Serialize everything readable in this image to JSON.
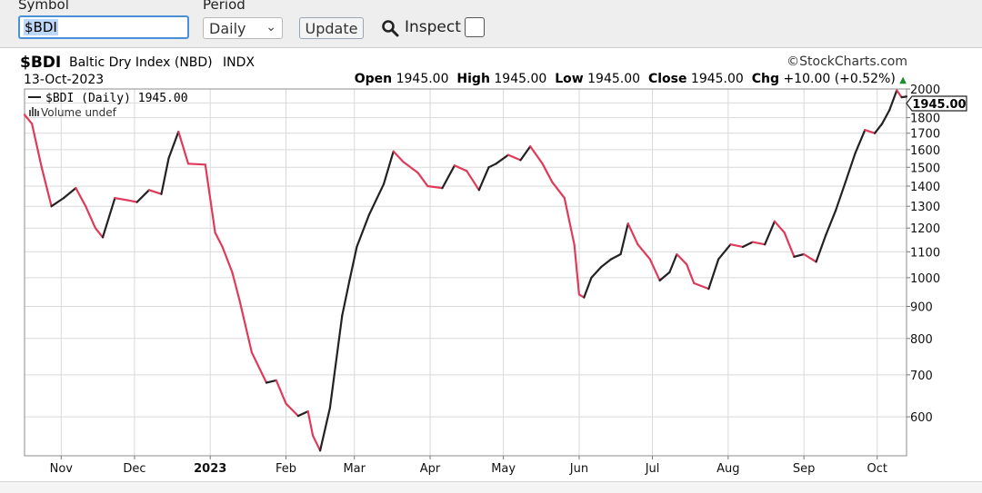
{
  "toolbar": {
    "symbol_label": "Symbol",
    "symbol_value": "$BDI",
    "period_label": "Period",
    "period_value": "Daily",
    "update_label": "Update",
    "inspect_label": "Inspect",
    "inspect_checked": false
  },
  "header": {
    "symbol": "$BDI",
    "name": "Baltic Dry Index (NBD)",
    "exchange": "INDX",
    "date": "13-Oct-2023",
    "watermark": "©StockCharts.com",
    "open_label": "Open",
    "open": "1945.00",
    "high_label": "High",
    "high": "1945.00",
    "low_label": "Low",
    "low": "1945.00",
    "close_label": "Close",
    "close": "1945.00",
    "chg_label": "Chg",
    "chg": "+10.00 (+0.52%)",
    "chg_arrow": "▲"
  },
  "colors": {
    "up": "#222222",
    "down": "#e03a5a",
    "accent": "#4a90d9",
    "grid": "#d9d9d9",
    "chg_up": "#1a8f2c"
  },
  "chart_data": {
    "type": "line",
    "legend": [
      "$BDI (Daily) 1945.00",
      "Volume undef"
    ],
    "last_value_label": "1945.00",
    "y_scale": "log",
    "ylim": [
      520,
      2000
    ],
    "y_ticks": [
      600,
      700,
      800,
      900,
      1000,
      1100,
      1200,
      1300,
      1400,
      1500,
      1600,
      1700,
      1800,
      1900,
      2000
    ],
    "y_tick_labels": [
      "600",
      "700",
      "800",
      "900",
      "1000",
      "1100",
      "1200",
      "1300",
      "1400",
      "1500",
      "1600",
      "1700",
      "1800",
      "",
      "2000"
    ],
    "x_range": [
      "2022-10-17",
      "2023-10-13"
    ],
    "x_ticks": [
      {
        "date": "2022-11-01",
        "label": "Nov"
      },
      {
        "date": "2022-12-01",
        "label": "Dec"
      },
      {
        "date": "2023-01-01",
        "label": "2023",
        "bold": true
      },
      {
        "date": "2023-02-01",
        "label": "Feb"
      },
      {
        "date": "2023-03-01",
        "label": "Mar"
      },
      {
        "date": "2023-04-01",
        "label": "Apr"
      },
      {
        "date": "2023-05-01",
        "label": "May"
      },
      {
        "date": "2023-06-01",
        "label": "Jun"
      },
      {
        "date": "2023-07-01",
        "label": "Jul"
      },
      {
        "date": "2023-08-01",
        "label": "Aug"
      },
      {
        "date": "2023-09-01",
        "label": "Sep"
      },
      {
        "date": "2023-10-01",
        "label": "Oct"
      }
    ],
    "series": [
      {
        "values": [
          [
            "2022-10-17",
            1820
          ],
          [
            "2022-10-20",
            1760
          ],
          [
            "2022-10-24",
            1500
          ],
          [
            "2022-10-28",
            1300
          ],
          [
            "2022-11-02",
            1340
          ],
          [
            "2022-11-07",
            1390
          ],
          [
            "2022-11-11",
            1300
          ],
          [
            "2022-11-15",
            1200
          ],
          [
            "2022-11-18",
            1160
          ],
          [
            "2022-11-23",
            1340
          ],
          [
            "2022-11-28",
            1330
          ],
          [
            "2022-12-02",
            1320
          ],
          [
            "2022-12-07",
            1380
          ],
          [
            "2022-12-12",
            1360
          ],
          [
            "2022-12-15",
            1550
          ],
          [
            "2022-12-19",
            1710
          ],
          [
            "2022-12-23",
            1520
          ],
          [
            "2022-12-30",
            1515
          ],
          [
            "2023-01-03",
            1180
          ],
          [
            "2023-01-06",
            1120
          ],
          [
            "2023-01-10",
            1020
          ],
          [
            "2023-01-13",
            920
          ],
          [
            "2023-01-18",
            760
          ],
          [
            "2023-01-24",
            680
          ],
          [
            "2023-01-28",
            686
          ],
          [
            "2023-02-01",
            630
          ],
          [
            "2023-02-06",
            602
          ],
          [
            "2023-02-10",
            612
          ],
          [
            "2023-02-12",
            560
          ],
          [
            "2023-02-15",
            530
          ],
          [
            "2023-02-19",
            620
          ],
          [
            "2023-02-24",
            870
          ],
          [
            "2023-02-27",
            990
          ],
          [
            "2023-03-02",
            1120
          ],
          [
            "2023-03-07",
            1260
          ],
          [
            "2023-03-13",
            1410
          ],
          [
            "2023-03-17",
            1590
          ],
          [
            "2023-03-21",
            1530
          ],
          [
            "2023-03-27",
            1470
          ],
          [
            "2023-03-31",
            1400
          ],
          [
            "2023-04-06",
            1390
          ],
          [
            "2023-04-11",
            1510
          ],
          [
            "2023-04-16",
            1480
          ],
          [
            "2023-04-21",
            1380
          ],
          [
            "2023-04-25",
            1500
          ],
          [
            "2023-04-28",
            1520
          ],
          [
            "2023-05-03",
            1570
          ],
          [
            "2023-05-08",
            1540
          ],
          [
            "2023-05-12",
            1620
          ],
          [
            "2023-05-17",
            1520
          ],
          [
            "2023-05-21",
            1420
          ],
          [
            "2023-05-26",
            1340
          ],
          [
            "2023-05-30",
            1130
          ],
          [
            "2023-06-01",
            940
          ],
          [
            "2023-06-03",
            930
          ],
          [
            "2023-06-06",
            1000
          ],
          [
            "2023-06-10",
            1040
          ],
          [
            "2023-06-14",
            1070
          ],
          [
            "2023-06-18",
            1090
          ],
          [
            "2023-06-21",
            1220
          ],
          [
            "2023-06-25",
            1130
          ],
          [
            "2023-06-30",
            1070
          ],
          [
            "2023-07-04",
            990
          ],
          [
            "2023-07-08",
            1020
          ],
          [
            "2023-07-11",
            1090
          ],
          [
            "2023-07-15",
            1050
          ],
          [
            "2023-07-18",
            980
          ],
          [
            "2023-07-24",
            960
          ],
          [
            "2023-07-28",
            1070
          ],
          [
            "2023-08-02",
            1130
          ],
          [
            "2023-08-07",
            1120
          ],
          [
            "2023-08-11",
            1140
          ],
          [
            "2023-08-16",
            1130
          ],
          [
            "2023-08-20",
            1230
          ],
          [
            "2023-08-24",
            1180
          ],
          [
            "2023-08-28",
            1080
          ],
          [
            "2023-09-01",
            1090
          ],
          [
            "2023-09-06",
            1060
          ],
          [
            "2023-09-10",
            1170
          ],
          [
            "2023-09-14",
            1280
          ],
          [
            "2023-09-18",
            1420
          ],
          [
            "2023-09-22",
            1580
          ],
          [
            "2023-09-26",
            1720
          ],
          [
            "2023-09-30",
            1700
          ],
          [
            "2023-10-03",
            1760
          ],
          [
            "2023-10-06",
            1850
          ],
          [
            "2023-10-09",
            1990
          ],
          [
            "2023-10-11",
            1940
          ],
          [
            "2023-10-13",
            1945
          ]
        ]
      }
    ]
  }
}
